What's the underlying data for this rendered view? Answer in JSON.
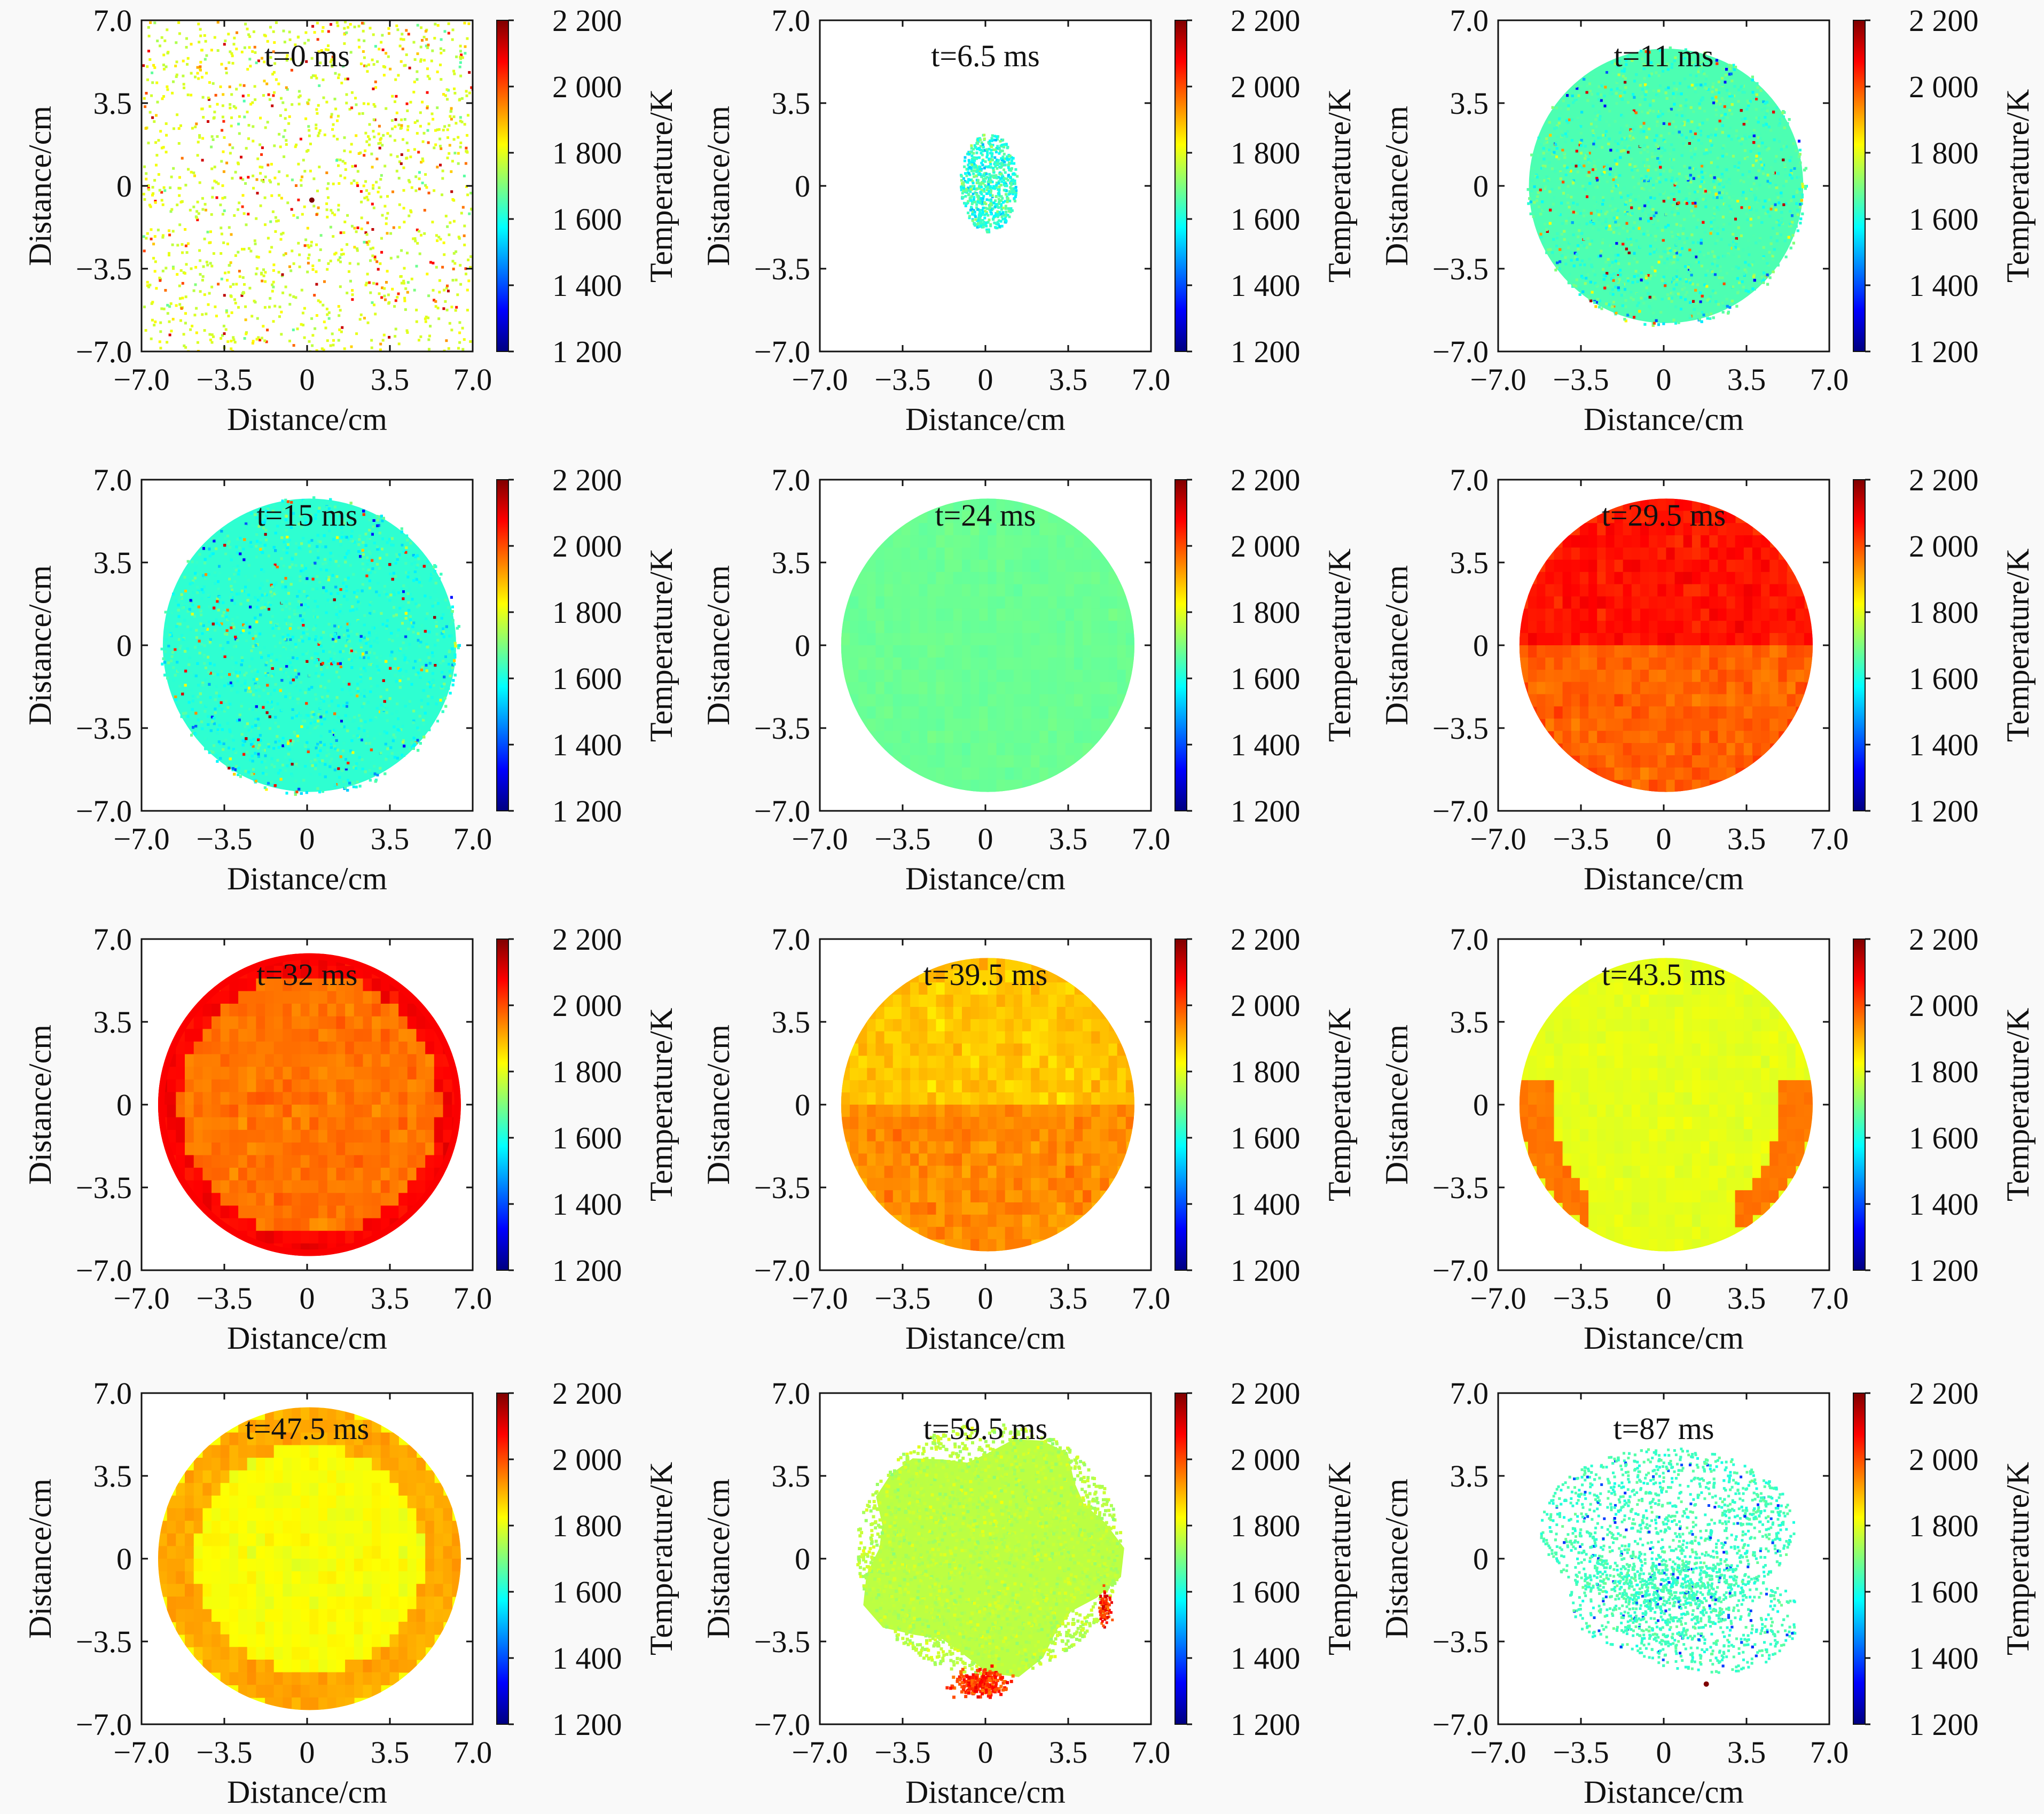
{
  "chart_data": {
    "type": "heatmap",
    "layout": "4x3 grid of temperature-field panels",
    "xlabel": "Distance/cm",
    "ylabel": "Distance/cm",
    "colorbar_label": "Temperature/K",
    "x_ticks": [
      "−7.0",
      "−3.5",
      "0",
      "3.5",
      "7.0"
    ],
    "y_ticks": [
      "7.0",
      "3.5",
      "0",
      "−3.5",
      "−7.0"
    ],
    "xlim": [
      -7.0,
      7.0
    ],
    "ylim": [
      -7.0,
      7.0
    ],
    "colorbar_ticks": [
      "2 200",
      "2 000",
      "1 800",
      "1 600",
      "1 400",
      "1 200"
    ],
    "colorbar_range": [
      1200,
      2200
    ],
    "colormap": [
      "#00007f",
      "#0000ff",
      "#007fff",
      "#00ffff",
      "#7fff7f",
      "#ffff00",
      "#ff7f00",
      "#ff0000",
      "#7f0000"
    ],
    "panels": [
      {
        "label": "t=0 ms",
        "time_ms": 0,
        "pattern": "sparse speckle",
        "approx_mean_K": 1800,
        "approx_radius_cm": 7.0
      },
      {
        "label": "t=6.5 ms",
        "time_ms": 6.5,
        "pattern": "small kernel",
        "approx_mean_K": 1620,
        "approx_radius_cm": 1.6
      },
      {
        "label": "t=11 ms",
        "time_ms": 11,
        "pattern": "noisy disc",
        "approx_mean_K": 1650,
        "approx_radius_cm": 5.8
      },
      {
        "label": "t=15 ms",
        "time_ms": 15,
        "pattern": "noisy disc",
        "approx_mean_K": 1620,
        "approx_radius_cm": 6.2
      },
      {
        "label": "t=24 ms",
        "time_ms": 24,
        "pattern": "uniform disc",
        "approx_mean_K": 1680,
        "approx_radius_cm": 6.2
      },
      {
        "label": "t=29.5 ms",
        "time_ms": 29.5,
        "pattern": "hot disc",
        "approx_mean_K": 2020,
        "approx_radius_cm": 6.2
      },
      {
        "label": "t=32 ms",
        "time_ms": 32,
        "pattern": "hot disc, red rim",
        "approx_mean_K": 1960,
        "approx_radius_cm": 6.4
      },
      {
        "label": "t=39.5 ms",
        "time_ms": 39.5,
        "pattern": "warm disc",
        "approx_mean_K": 1900,
        "approx_radius_cm": 6.2
      },
      {
        "label": "t=43.5 ms",
        "time_ms": 43.5,
        "pattern": "cooling disc, hot edges",
        "approx_mean_K": 1800,
        "approx_radius_cm": 6.2
      },
      {
        "label": "t=47.5 ms",
        "time_ms": 47.5,
        "pattern": "cooling disc, warm edges",
        "approx_mean_K": 1820,
        "approx_radius_cm": 6.4
      },
      {
        "label": "t=59.5 ms",
        "time_ms": 59.5,
        "pattern": "shrinking cloud",
        "approx_mean_K": 1760,
        "approx_radius_cm": 5.6
      },
      {
        "label": "t=87 ms",
        "time_ms": 87,
        "pattern": "dispersing cloud",
        "approx_mean_K": 1660,
        "approx_radius_cm": 4.5
      }
    ]
  }
}
